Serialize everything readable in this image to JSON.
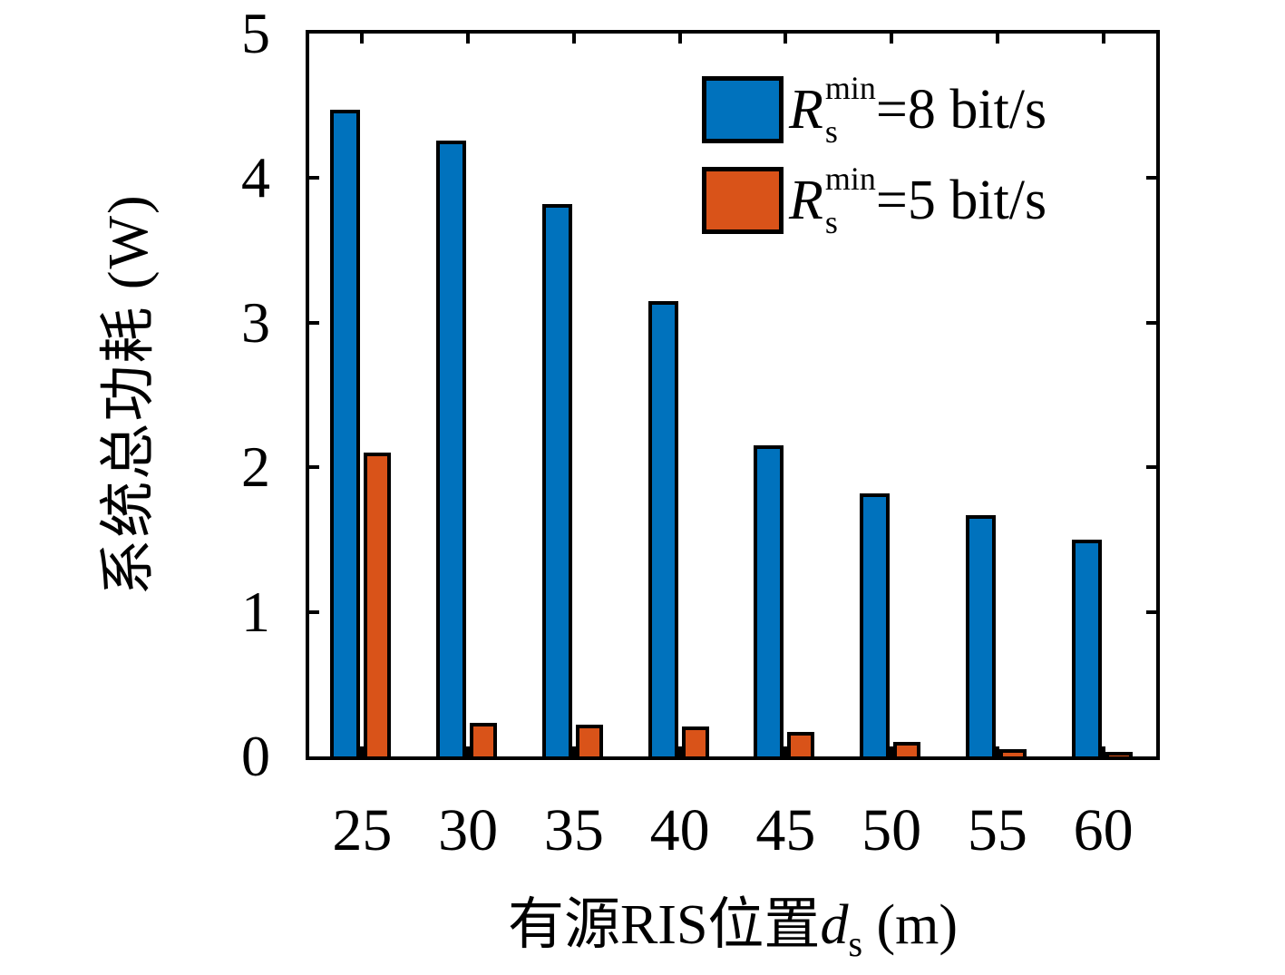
{
  "chart_data": {
    "type": "bar",
    "title": "",
    "categories": [
      "25",
      "30",
      "35",
      "40",
      "45",
      "50",
      "55",
      "60"
    ],
    "series": [
      {
        "name": "Rs^min=8 bit/s",
        "label_symbol": "R",
        "label_sup": "min",
        "label_sub": "s",
        "label_rest": "=8 bit/s",
        "color": "#0072BD",
        "values": [
          4.47,
          4.26,
          3.82,
          3.15,
          2.15,
          1.82,
          1.67,
          1.5
        ]
      },
      {
        "name": "Rs^min=5 bit/s",
        "label_symbol": "R",
        "label_sup": "min",
        "label_sub": "s",
        "label_rest": "=5 bit/s",
        "color": "#D95319",
        "values": [
          2.1,
          0.23,
          0.22,
          0.21,
          0.17,
          0.1,
          0.05,
          0.03
        ]
      }
    ],
    "xlabel_prefix": "有源RIS位置",
    "xlabel_var": "d",
    "xlabel_var_sub": "s",
    "xlabel_suffix": " (m)",
    "ylabel": "系统总功耗 (W)",
    "ylim": [
      0,
      5
    ],
    "yticks": [
      "0",
      "1",
      "2",
      "3",
      "4",
      "5"
    ],
    "grid": false,
    "legend_position": "top-right",
    "axis_color": "#000000",
    "bar_edge_color": "#000000"
  }
}
